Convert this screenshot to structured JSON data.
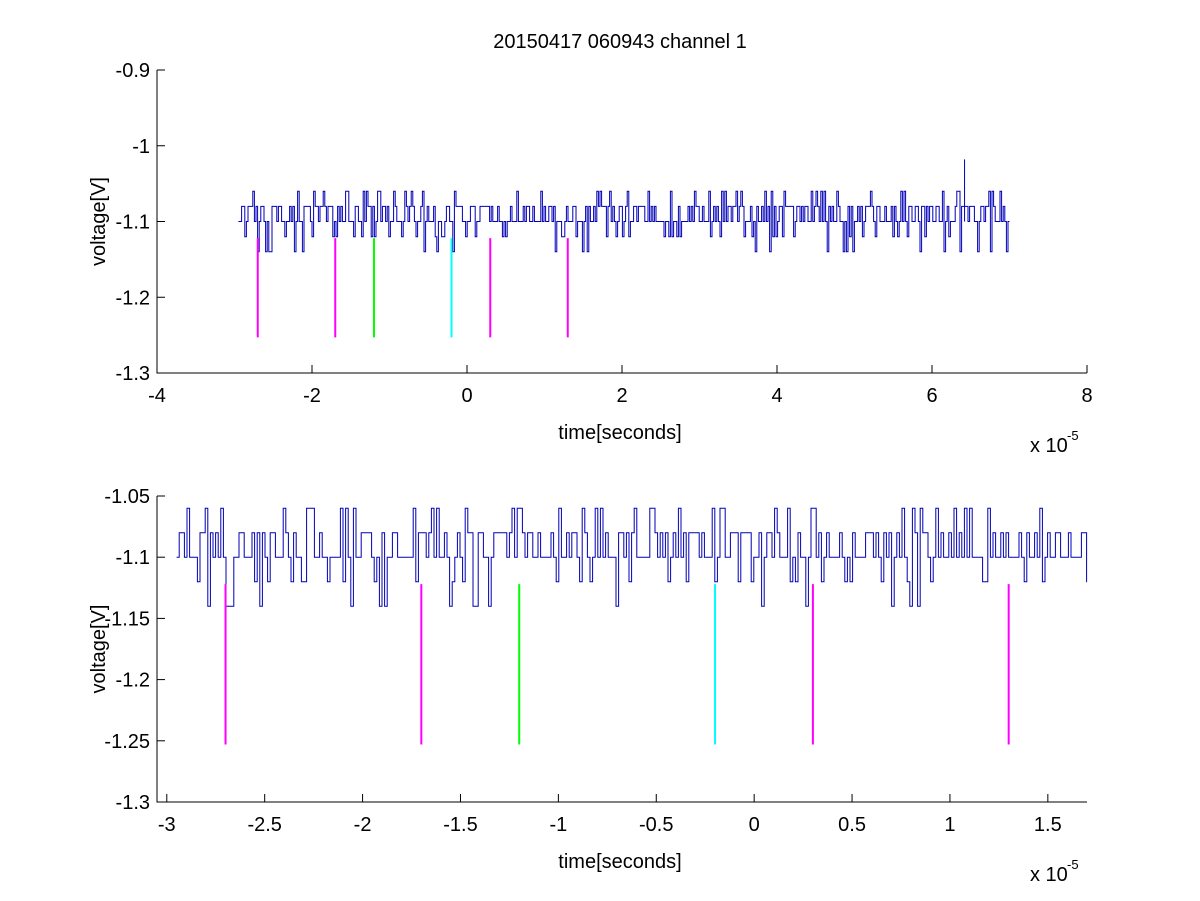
{
  "figure": {
    "title": "20150417 060943 channel 1"
  },
  "chart_data": [
    {
      "type": "line",
      "title": "20150417 060943 channel 1",
      "xlabel": "time[seconds]",
      "ylabel": "voltage[V]",
      "x_exponent_label": "x 10",
      "x_exponent": "-5",
      "xlim": [
        -4e-05,
        8e-05
      ],
      "ylim": [
        -1.3,
        -0.9
      ],
      "xticks": [
        -4e-05,
        -2e-05,
        0,
        2e-05,
        4e-05,
        6e-05,
        8e-05
      ],
      "xtick_labels": [
        "-4",
        "-2",
        "0",
        "2",
        "4",
        "6",
        "8"
      ],
      "yticks": [
        -1.3,
        -1.2,
        -1.1,
        -1.0,
        -0.9
      ],
      "ytick_labels": [
        "-1.3",
        "-1.2",
        "-1.1",
        "-1",
        "-0.9"
      ],
      "grid": false,
      "signal": {
        "name": "",
        "color": "#0000b4",
        "x_start": -2.95e-05,
        "x_end": 7e-05,
        "levels": [
          -1.14,
          -1.12,
          -1.1,
          -1.08,
          -1.06
        ],
        "baseline": -1.1,
        "spike_x": 6.42e-05,
        "spike_y": -1.018
      },
      "markers": [
        {
          "x": -2.7e-05,
          "y_top": -1.122,
          "y_bottom": -1.253,
          "color": "#ff00ff"
        },
        {
          "x": -1.7e-05,
          "y_top": -1.122,
          "y_bottom": -1.253,
          "color": "#ff00ff"
        },
        {
          "x": -1.2e-05,
          "y_top": -1.122,
          "y_bottom": -1.253,
          "color": "#00ff00"
        },
        {
          "x": -2e-06,
          "y_top": -1.122,
          "y_bottom": -1.253,
          "color": "#00ffff"
        },
        {
          "x": 3e-06,
          "y_top": -1.122,
          "y_bottom": -1.253,
          "color": "#ff00ff"
        },
        {
          "x": 1.3e-05,
          "y_top": -1.122,
          "y_bottom": -1.253,
          "color": "#ff00ff"
        }
      ]
    },
    {
      "type": "line",
      "title": "",
      "xlabel": "time[seconds]",
      "ylabel": "voltage[V]",
      "x_exponent_label": "x 10",
      "x_exponent": "-5",
      "xlim": [
        -3.05e-05,
        1.7e-05
      ],
      "ylim": [
        -1.3,
        -1.05
      ],
      "xticks": [
        -3e-05,
        -2.5e-05,
        -2e-05,
        -1.5e-05,
        -1e-05,
        -5e-06,
        0,
        5e-06,
        1e-05,
        1.5e-05
      ],
      "xtick_labels": [
        "-3",
        "-2.5",
        "-2",
        "-1.5",
        "-1",
        "-0.5",
        "0",
        "0.5",
        "1",
        "1.5"
      ],
      "yticks": [
        -1.3,
        -1.25,
        -1.2,
        -1.15,
        -1.1,
        -1.05
      ],
      "ytick_labels": [
        "-1.3",
        "-1.25",
        "-1.2",
        "-1.15",
        "-1.1",
        "-1.05"
      ],
      "grid": false,
      "signal": {
        "name": "",
        "color": "#0000b4",
        "x_start": -2.95e-05,
        "x_end": 1.7e-05,
        "levels": [
          -1.14,
          -1.12,
          -1.1,
          -1.08,
          -1.06
        ],
        "baseline": -1.1
      },
      "markers": [
        {
          "x": -2.7e-05,
          "y_top": -1.122,
          "y_bottom": -1.253,
          "color": "#ff00ff"
        },
        {
          "x": -1.7e-05,
          "y_top": -1.122,
          "y_bottom": -1.253,
          "color": "#ff00ff"
        },
        {
          "x": -1.2e-05,
          "y_top": -1.122,
          "y_bottom": -1.253,
          "color": "#00ff00"
        },
        {
          "x": -2e-06,
          "y_top": -1.122,
          "y_bottom": -1.253,
          "color": "#00ffff"
        },
        {
          "x": 3e-06,
          "y_top": -1.122,
          "y_bottom": -1.253,
          "color": "#ff00ff"
        },
        {
          "x": 1.3e-05,
          "y_top": -1.122,
          "y_bottom": -1.253,
          "color": "#ff00ff"
        }
      ]
    }
  ]
}
